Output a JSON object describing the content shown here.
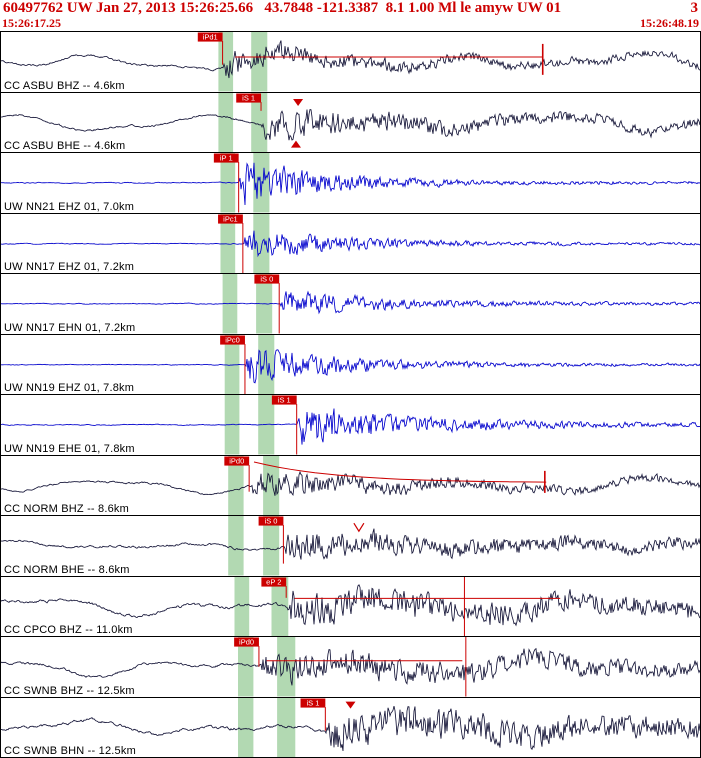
{
  "header": {
    "title": "60497762 UW Jan 27, 2013 15:26:25.66   43.7848 -121.3387  8.1 1.00 Ml le amyw UW 01",
    "page": "3",
    "start_time": "15:26:17.25",
    "end_time": "15:26:48.19"
  },
  "colors": {
    "accent_red": "#cc0000",
    "trace_dark": "#151538",
    "trace_blue": "#0000cc",
    "band_green": "#b2d9b2"
  },
  "traces": [
    {
      "label": "CC ASBU BHZ -- 4.6km",
      "color": "dark",
      "bands": [
        [
          0.311,
          0.332
        ],
        [
          0.358,
          0.381
        ]
      ],
      "pick": {
        "label": "iPd1",
        "x": 0.317,
        "len": 0.55
      },
      "wave": {
        "seed": 1,
        "lp": 9,
        "pre": 1.6,
        "burst": 11,
        "decay": 0.008,
        "sustain": 2.5
      },
      "overlays": [
        {
          "type": "hline",
          "x1": 0.335,
          "x2": 0.775,
          "y": 0.42
        },
        {
          "type": "tick",
          "x": 0.775,
          "y1": 0.2,
          "y2": 0.72
        }
      ]
    },
    {
      "label": "CC ASBU BHE -- 4.6km",
      "color": "dark",
      "bands": [
        [
          0.311,
          0.332
        ],
        [
          0.358,
          0.381
        ]
      ],
      "pick": {
        "label": "iS 1",
        "x": 0.372,
        "len": 0.3
      },
      "wave": {
        "seed": 2,
        "lp": 8,
        "pre": 1.6,
        "burst": 13,
        "decay": 0.006,
        "sustain": 2.5
      },
      "overlays": [
        {
          "type": "tri",
          "x": 0.425,
          "y": 0.1,
          "dir": "down"
        },
        {
          "type": "tri",
          "x": 0.422,
          "y": 0.8,
          "dir": "up"
        }
      ]
    },
    {
      "label": "UW NN21 EHZ 01, 7.0km",
      "color": "blue",
      "bands": [
        [
          0.314,
          0.335
        ],
        [
          0.361,
          0.384
        ]
      ],
      "pick": {
        "label": "iP 1",
        "x": 0.34,
        "len": 1
      },
      "wave": {
        "seed": 3,
        "lp": 0,
        "pre": 0.7,
        "burst": 20,
        "decay": 0.012,
        "sustain": 0.9
      },
      "overlays": []
    },
    {
      "label": "UW NN17 EHZ 01, 7.2km",
      "color": "blue",
      "bands": [
        [
          0.314,
          0.335
        ],
        [
          0.361,
          0.384
        ]
      ],
      "pick": {
        "label": "iPc1",
        "x": 0.346,
        "len": 1
      },
      "wave": {
        "seed": 4,
        "lp": 0,
        "pre": 0.6,
        "burst": 13,
        "decay": 0.01,
        "sustain": 0.8
      },
      "overlays": []
    },
    {
      "label": "UW NN17 EHN 01, 7.2km",
      "color": "blue",
      "bands": [
        [
          0.317,
          0.338
        ],
        [
          0.365,
          0.388
        ]
      ],
      "pick": {
        "label": "iS 0",
        "x": 0.398,
        "len": 1
      },
      "wave": {
        "seed": 5,
        "lp": 0,
        "pre": 0.6,
        "burst": 11,
        "decay": 0.009,
        "sustain": 0.8
      },
      "overlays": []
    },
    {
      "label": "UW NN19 EHZ 01, 7.8km",
      "color": "blue",
      "bands": [
        [
          0.32,
          0.341
        ],
        [
          0.368,
          0.391
        ]
      ],
      "pick": {
        "label": "iPc0",
        "x": 0.349,
        "len": 1
      },
      "wave": {
        "seed": 6,
        "lp": 0,
        "pre": 0.6,
        "burst": 16,
        "decay": 0.01,
        "sustain": 0.8
      },
      "overlays": []
    },
    {
      "label": "UW NN19 EHE 01, 7.8km",
      "color": "blue",
      "bands": [
        [
          0.32,
          0.341
        ],
        [
          0.368,
          0.391
        ]
      ],
      "pick": {
        "label": "iS 1",
        "x": 0.423,
        "len": 1
      },
      "wave": {
        "seed": 7,
        "lp": 0,
        "pre": 0.7,
        "burst": 16,
        "decay": 0.008,
        "sustain": 0.9
      },
      "overlays": []
    },
    {
      "label": "CC NORM BHZ -- 8.6km",
      "color": "dark",
      "bands": [
        [
          0.325,
          0.347
        ],
        [
          0.375,
          0.398
        ]
      ],
      "pick": {
        "label": "iPd0",
        "x": 0.355,
        "len": 0.6
      },
      "wave": {
        "seed": 8,
        "lp": 7,
        "pre": 1.4,
        "burst": 11,
        "decay": 0.006,
        "sustain": 2
      },
      "overlays": [
        {
          "type": "coda",
          "x1": 0.362,
          "x2": 0.78,
          "y0": 0.1,
          "y1": 0.45
        },
        {
          "type": "tick",
          "x": 0.778,
          "y1": 0.25,
          "y2": 0.62
        }
      ]
    },
    {
      "label": "CC NORM BHE -- 8.6km",
      "color": "dark",
      "bands": [
        [
          0.325,
          0.347
        ],
        [
          0.375,
          0.398
        ]
      ],
      "pick": {
        "label": "iS 0",
        "x": 0.404,
        "len": 0.8
      },
      "wave": {
        "seed": 9,
        "lp": 5,
        "pre": 1.8,
        "burst": 12,
        "decay": 0.004,
        "sustain": 2.5
      },
      "overlays": [
        {
          "type": "vmark",
          "x": 0.512,
          "y": 0.12
        }
      ]
    },
    {
      "label": "CC CPCO BHZ -- 11.0km",
      "color": "dark",
      "bands": [
        [
          0.334,
          0.355
        ],
        [
          0.387,
          0.411
        ]
      ],
      "pick": {
        "label": "eP 2",
        "x": 0.408,
        "len": 0.35
      },
      "wave": {
        "seed": 10,
        "lp": 9,
        "pre": 2.4,
        "burst": 13,
        "decay": 0.003,
        "sustain": 5
      },
      "overlays": [
        {
          "type": "hline",
          "x1": 0.42,
          "x2": 0.8,
          "y": 0.36
        },
        {
          "type": "vline",
          "x": 0.663,
          "y1": 0,
          "y2": 1
        }
      ]
    },
    {
      "label": "CC SWNB BHZ -- 12.5km",
      "color": "dark",
      "bands": [
        [
          0.339,
          0.361
        ],
        [
          0.395,
          0.421
        ]
      ],
      "pick": {
        "label": "iPd0",
        "x": 0.369,
        "len": 0.5
      },
      "wave": {
        "seed": 11,
        "lp": 9,
        "pre": 2.0,
        "burst": 12,
        "decay": 0.003,
        "sustain": 4
      },
      "overlays": [
        {
          "type": "hline",
          "x1": 0.38,
          "x2": 0.66,
          "y": 0.4
        },
        {
          "type": "vline",
          "x": 0.665,
          "y1": 0,
          "y2": 1
        }
      ]
    },
    {
      "label": "CC SWNB BHN -- 12.5km",
      "color": "dark",
      "bands": [
        [
          0.339,
          0.361
        ],
        [
          0.395,
          0.421
        ]
      ],
      "pick": {
        "label": "iS 1",
        "x": 0.464,
        "len": 0.55
      },
      "wave": {
        "seed": 12,
        "lp": 8,
        "pre": 2.4,
        "burst": 14,
        "decay": 0.003,
        "sustain": 5
      },
      "overlays": [
        {
          "type": "tri",
          "x": 0.5,
          "y": 0.06,
          "dir": "down"
        }
      ]
    }
  ]
}
